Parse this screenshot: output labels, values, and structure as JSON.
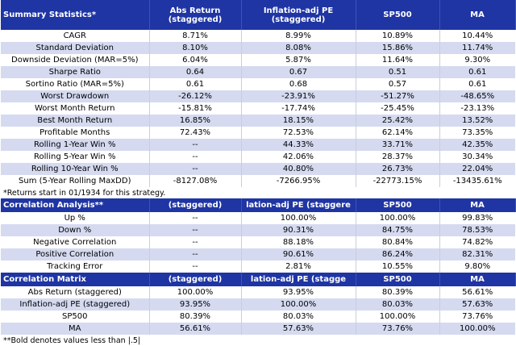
{
  "summary": {
    "header": [
      "Summary Statistics*",
      "Abs Return\n(staggered)",
      "Inflation-adj PE\n(staggered)",
      "SP500",
      "MA"
    ],
    "rows": [
      [
        "CAGR",
        "8.71%",
        "8.99%",
        "10.89%",
        "10.44%"
      ],
      [
        "Standard Deviation",
        "8.10%",
        "8.08%",
        "15.86%",
        "11.74%"
      ],
      [
        "Downside Deviation (MAR=5%)",
        "6.04%",
        "5.87%",
        "11.64%",
        "9.30%"
      ],
      [
        "Sharpe Ratio",
        "0.64",
        "0.67",
        "0.51",
        "0.61"
      ],
      [
        "Sortino Ratio (MAR=5%)",
        "0.61",
        "0.68",
        "0.57",
        "0.61"
      ],
      [
        "Worst Drawdown",
        "-26.12%",
        "-23.91%",
        "-51.27%",
        "-48.65%"
      ],
      [
        "Worst Month Return",
        "-15.81%",
        "-17.74%",
        "-25.45%",
        "-23.13%"
      ],
      [
        "Best Month Return",
        "16.85%",
        "18.15%",
        "25.42%",
        "13.52%"
      ],
      [
        "Profitable Months",
        "72.43%",
        "72.53%",
        "62.14%",
        "73.35%"
      ],
      [
        "Rolling 1-Year Win %",
        "--",
        "44.33%",
        "33.71%",
        "42.35%"
      ],
      [
        "Rolling 5-Year Win %",
        "--",
        "42.06%",
        "28.37%",
        "30.34%"
      ],
      [
        "Rolling 10-Year Win %",
        "--",
        "40.80%",
        "26.73%",
        "22.04%"
      ],
      [
        "Sum (5-Year Rolling MaxDD)",
        "-8127.08%",
        "-7266.95%",
        "-22773.15%",
        "-13435.61%"
      ]
    ],
    "note": "*Returns start in 01/1934 for this strategy."
  },
  "correlation_analysis": {
    "header": [
      "Correlation Analysis**",
      "(staggered)",
      "lation-adj PE (staggere",
      "SP500",
      "MA"
    ],
    "rows": [
      [
        "Up %",
        "--",
        "100.00%",
        "100.00%",
        "99.83%"
      ],
      [
        "Down %",
        "--",
        "90.31%",
        "84.75%",
        "78.53%"
      ],
      [
        "Negative Correlation",
        "--",
        "88.18%",
        "80.84%",
        "74.82%"
      ],
      [
        "Positive Correlation",
        "--",
        "90.61%",
        "86.24%",
        "82.31%"
      ],
      [
        "Tracking Error",
        "--",
        "2.81%",
        "10.55%",
        "9.80%"
      ]
    ]
  },
  "correlation_matrix": {
    "header": [
      "Correlation Matrix",
      "(staggered)",
      "lation-adj PE (stagge",
      "SP500",
      "MA"
    ],
    "rows": [
      [
        "Abs Return (staggered)",
        "100.00%",
        "93.95%",
        "80.39%",
        "56.61%"
      ],
      [
        "Inflation-adj PE (staggered)",
        "93.95%",
        "100.00%",
        "80.03%",
        "57.63%"
      ],
      [
        "SP500",
        "80.39%",
        "80.03%",
        "100.00%",
        "73.76%"
      ],
      [
        "MA",
        "56.61%",
        "57.63%",
        "73.76%",
        "100.00%"
      ]
    ],
    "note": "**Bold denotes values less than |.5|"
  },
  "colors": {
    "header_bg": "#1f35a3",
    "header_text": "#ffffff",
    "band_row": "#d5daf0",
    "plain_row": "#ffffff"
  }
}
